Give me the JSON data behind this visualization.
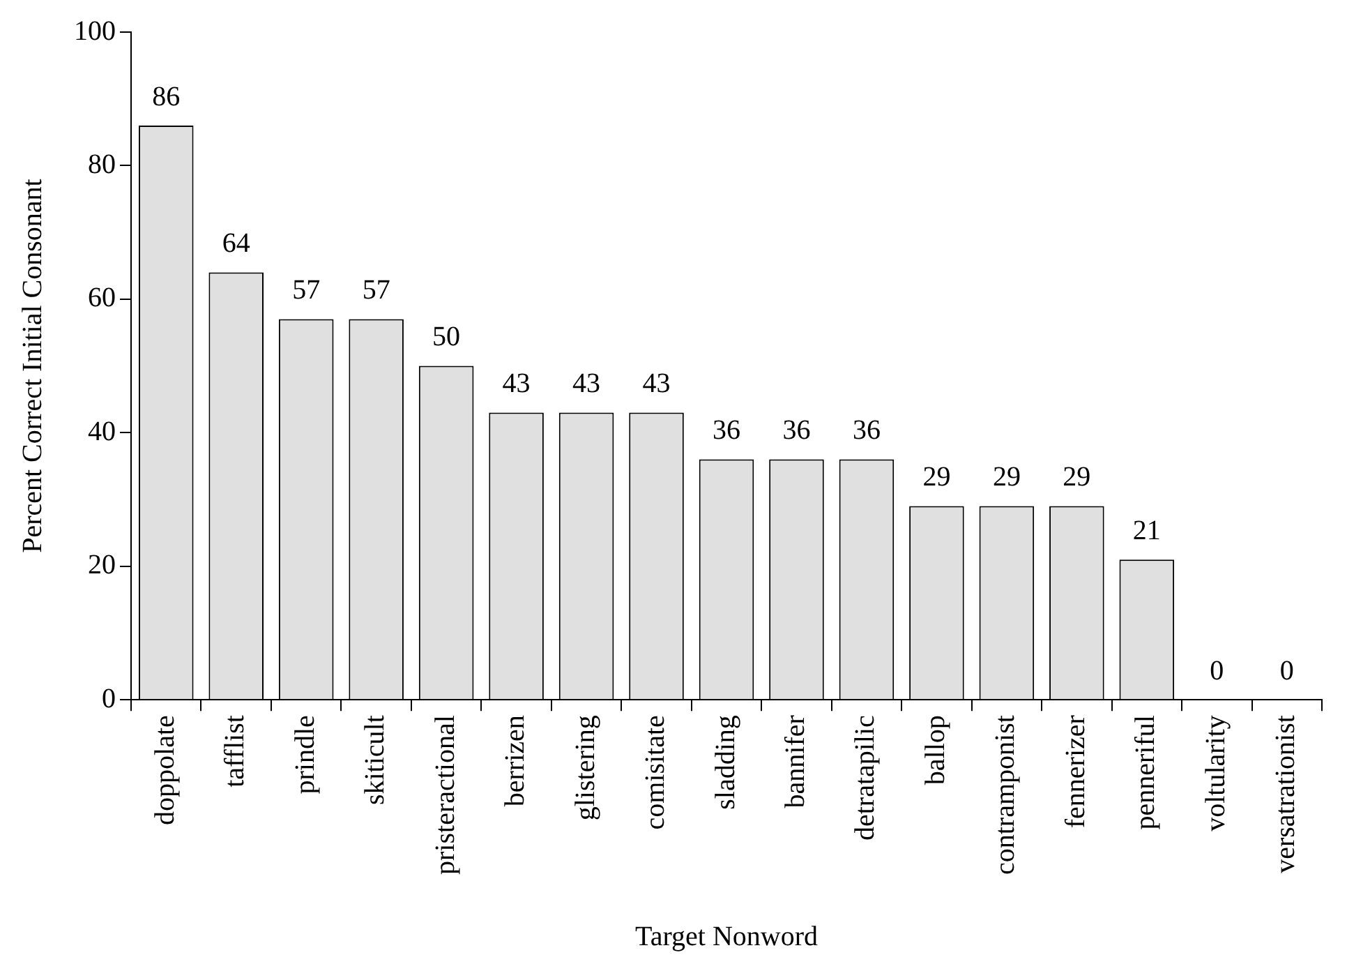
{
  "chart_data": {
    "type": "bar",
    "xlabel": "Target Nonword",
    "ylabel": "Percent Correct Initial Consonant",
    "categories": [
      "doppolate",
      "tafflist",
      "prindle",
      "skiticult",
      "pristeractional",
      "berrizen",
      "glistering",
      "comisitate",
      "sladding",
      "bannifer",
      "detratapilic",
      "ballop",
      "contramponist",
      "fennerizer",
      "penneriful",
      "voltularity",
      "versatrationist"
    ],
    "values": [
      86,
      64,
      57,
      57,
      50,
      43,
      43,
      43,
      36,
      36,
      36,
      29,
      29,
      29,
      21,
      0,
      0
    ],
    "color": "#e0e0e0",
    "ylim": [
      0,
      100
    ],
    "yticks": [
      0,
      20,
      40,
      60,
      80,
      100
    ],
    "grid": false,
    "legend": false,
    "data_labels": true
  }
}
